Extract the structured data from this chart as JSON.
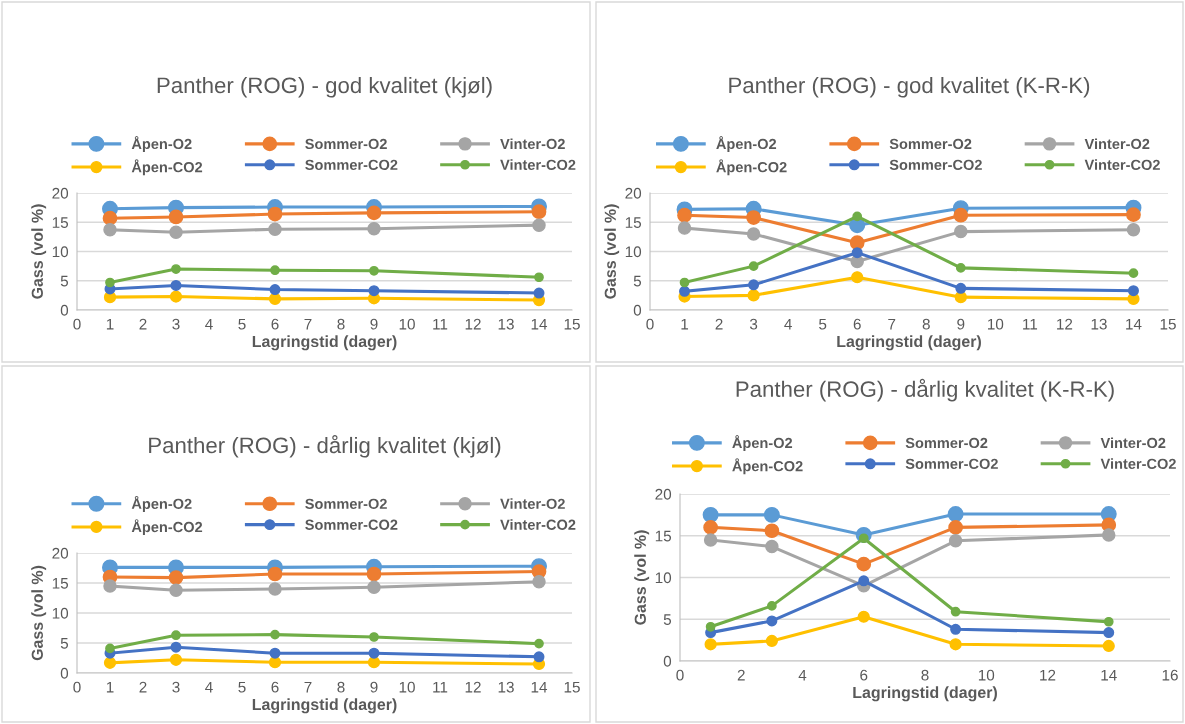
{
  "chart_data": [
    {
      "type": "line",
      "title": "Panther (ROG) - god kvalitet (kjøl)",
      "xlabel": "Lagringstid (dager)",
      "ylabel": "Gass (vol %)",
      "x": [
        1,
        3,
        6,
        9,
        14
      ],
      "xlim": [
        0,
        15
      ],
      "xticks": [
        0,
        1,
        2,
        3,
        4,
        5,
        6,
        7,
        8,
        9,
        10,
        11,
        12,
        13,
        14,
        15
      ],
      "ylim": [
        0,
        20
      ],
      "yticks": [
        0,
        5,
        10,
        15,
        20
      ],
      "grid": "y",
      "legend": "top",
      "marker": "circle",
      "series": [
        {
          "name": "Åpen-O2",
          "color": "#5b9bd5",
          "values": [
            17.3,
            17.5,
            17.6,
            17.6,
            17.7
          ]
        },
        {
          "name": "Sommer-O2",
          "color": "#ed7d31",
          "values": [
            15.7,
            15.9,
            16.4,
            16.6,
            16.8
          ]
        },
        {
          "name": "Vinter-O2",
          "color": "#a5a5a5",
          "values": [
            13.7,
            13.3,
            13.8,
            13.9,
            14.5
          ]
        },
        {
          "name": "Åpen-CO2",
          "color": "#ffc000",
          "values": [
            2.2,
            2.3,
            1.9,
            2.0,
            1.7
          ]
        },
        {
          "name": "Sommer-CO2",
          "color": "#4472c4",
          "values": [
            3.6,
            4.2,
            3.5,
            3.3,
            2.9
          ]
        },
        {
          "name": "Vinter-CO2",
          "color": "#70ad47",
          "values": [
            4.7,
            7.0,
            6.8,
            6.7,
            5.6
          ]
        }
      ]
    },
    {
      "type": "line",
      "title": "Panther (ROG) - god kvalitet (K-R-K)",
      "xlabel": "Lagringstid (dager)",
      "ylabel": "Gass (vol %)",
      "x": [
        1,
        3,
        6,
        9,
        14
      ],
      "xlim": [
        0,
        15
      ],
      "xticks": [
        0,
        1,
        2,
        3,
        4,
        5,
        6,
        7,
        8,
        9,
        10,
        11,
        12,
        13,
        14,
        15
      ],
      "ylim": [
        0,
        20
      ],
      "yticks": [
        0,
        5,
        10,
        15,
        20
      ],
      "grid": "y",
      "legend": "top",
      "marker": "circle",
      "series": [
        {
          "name": "Åpen-O2",
          "color": "#5b9bd5",
          "values": [
            17.2,
            17.3,
            14.5,
            17.4,
            17.5
          ]
        },
        {
          "name": "Sommer-O2",
          "color": "#ed7d31",
          "values": [
            16.2,
            15.8,
            11.5,
            16.2,
            16.3
          ]
        },
        {
          "name": "Vinter-O2",
          "color": "#a5a5a5",
          "values": [
            14.0,
            13.0,
            8.3,
            13.4,
            13.7
          ]
        },
        {
          "name": "Åpen-CO2",
          "color": "#ffc000",
          "values": [
            2.3,
            2.5,
            5.6,
            2.2,
            1.9
          ]
        },
        {
          "name": "Sommer-CO2",
          "color": "#4472c4",
          "values": [
            3.2,
            4.3,
            9.8,
            3.7,
            3.3
          ]
        },
        {
          "name": "Vinter-CO2",
          "color": "#70ad47",
          "values": [
            4.7,
            7.5,
            16.0,
            7.2,
            6.3
          ]
        }
      ]
    },
    {
      "type": "line",
      "title": "Panther (ROG) - dårlig kvalitet (kjøl)",
      "xlabel": "Lagringstid (dager)",
      "ylabel": "Gass (vol %)",
      "x": [
        1,
        3,
        6,
        9,
        14
      ],
      "xlim": [
        0,
        15
      ],
      "xticks": [
        0,
        1,
        2,
        3,
        4,
        5,
        6,
        7,
        8,
        9,
        10,
        11,
        12,
        13,
        14,
        15
      ],
      "ylim": [
        0,
        20
      ],
      "yticks": [
        0,
        5,
        10,
        15,
        20
      ],
      "grid": "y",
      "legend": "top",
      "marker": "circle",
      "series": [
        {
          "name": "Åpen-O2",
          "color": "#5b9bd5",
          "values": [
            17.6,
            17.6,
            17.6,
            17.7,
            17.8
          ]
        },
        {
          "name": "Sommer-O2",
          "color": "#ed7d31",
          "values": [
            16.0,
            15.9,
            16.5,
            16.5,
            16.9
          ]
        },
        {
          "name": "Vinter-O2",
          "color": "#a5a5a5",
          "values": [
            14.5,
            13.8,
            14.0,
            14.3,
            15.2
          ]
        },
        {
          "name": "Åpen-CO2",
          "color": "#ffc000",
          "values": [
            1.7,
            2.2,
            1.8,
            1.8,
            1.5
          ]
        },
        {
          "name": "Sommer-CO2",
          "color": "#4472c4",
          "values": [
            3.3,
            4.3,
            3.3,
            3.3,
            2.7
          ]
        },
        {
          "name": "Vinter-CO2",
          "color": "#70ad47",
          "values": [
            4.1,
            6.3,
            6.4,
            6.0,
            4.9
          ]
        }
      ]
    },
    {
      "type": "line",
      "title": "Panther (ROG) - dårlig kvalitet (K-R-K)",
      "xlabel": "Lagringstid (dager)",
      "ylabel": "Gass (vol %)",
      "x": [
        1,
        3,
        6,
        9,
        14
      ],
      "xlim": [
        0,
        16
      ],
      "xticks": [
        0,
        2,
        4,
        6,
        8,
        10,
        12,
        14,
        16
      ],
      "ylim": [
        0,
        20
      ],
      "yticks": [
        0,
        5,
        10,
        15,
        20
      ],
      "grid": "y",
      "legend": "top",
      "marker": "circle",
      "series": [
        {
          "name": "Åpen-O2",
          "color": "#5b9bd5",
          "values": [
            17.5,
            17.5,
            15.1,
            17.6,
            17.6
          ]
        },
        {
          "name": "Sommer-O2",
          "color": "#ed7d31",
          "values": [
            16.0,
            15.6,
            11.6,
            16.0,
            16.3
          ]
        },
        {
          "name": "Vinter-O2",
          "color": "#a5a5a5",
          "values": [
            14.5,
            13.7,
            9.0,
            14.4,
            15.1
          ]
        },
        {
          "name": "Åpen-CO2",
          "color": "#ffc000",
          "values": [
            2.0,
            2.4,
            5.3,
            2.0,
            1.8
          ]
        },
        {
          "name": "Sommer-CO2",
          "color": "#4472c4",
          "values": [
            3.4,
            4.8,
            9.6,
            3.8,
            3.4
          ]
        },
        {
          "name": "Vinter-CO2",
          "color": "#70ad47",
          "values": [
            4.1,
            6.6,
            14.7,
            5.9,
            4.7
          ]
        }
      ]
    }
  ]
}
